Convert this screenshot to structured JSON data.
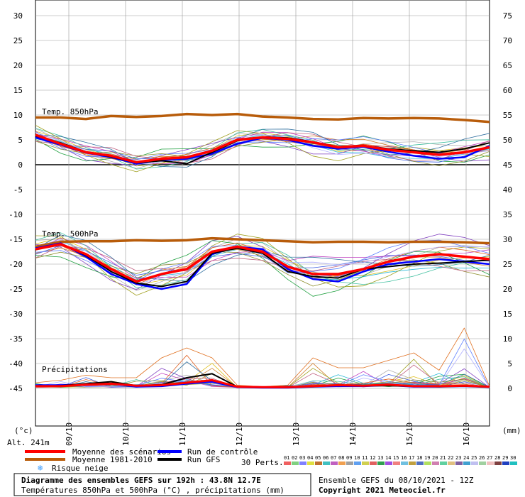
{
  "chart_data": {
    "type": "line",
    "x_dates": [
      "09/10",
      "10/10",
      "11/10",
      "12/10",
      "13/10",
      "14/10",
      "15/10",
      "16/10"
    ],
    "y_left_ticks": [
      30,
      25,
      20,
      15,
      10,
      5,
      0,
      -5,
      -10,
      -15,
      -20,
      -25,
      -30,
      -35,
      -40,
      -45
    ],
    "y_right_ticks": [
      75,
      70,
      65,
      60,
      55,
      50,
      45,
      40,
      35,
      30,
      25,
      20,
      15,
      10,
      5,
      0
    ],
    "unit_left": "(°c)",
    "unit_right": "(mm)",
    "altitude": "Alt. 241m",
    "panels": {
      "t850": "Temp. 850hPa",
      "t500": "Temp. 500hPa",
      "precip": "Précipitations"
    },
    "series": {
      "t850_mean": {
        "name": "Moyenne des scénarios",
        "color": "#ff0000",
        "values": [
          6,
          4.2,
          2.5,
          1.8,
          0.5,
          1.2,
          1.5,
          2.8,
          5,
          5.5,
          5.2,
          4.5,
          3.5,
          3.8,
          3,
          2.5,
          2,
          2.5,
          3.5
        ]
      },
      "t850_clim": {
        "name": "Moyenne 1981-2010",
        "color": "#b85c0a",
        "values": [
          9.5,
          9.5,
          9.2,
          9.8,
          9.6,
          9.8,
          10.2,
          10,
          10.2,
          9.7,
          9.5,
          9.2,
          9.1,
          9.4,
          9.3,
          9.4,
          9.3,
          9.0,
          8.6
        ]
      },
      "t850_control": {
        "name": "Run de contrôle",
        "color": "#0000ff",
        "values": [
          5.5,
          4,
          2.4,
          1.5,
          0.2,
          1,
          1.2,
          2.2,
          4.2,
          5.4,
          5,
          3.8,
          3.2,
          3.6,
          2.6,
          1.8,
          1.2,
          1.5,
          3.8
        ]
      },
      "t850_gfs": {
        "name": "Run GFS",
        "color": "#000000",
        "values": [
          5.8,
          4.4,
          2.6,
          1.6,
          0.4,
          0.8,
          0.2,
          2.5,
          4.8,
          5.6,
          5.4,
          4.6,
          3.6,
          3.9,
          3.2,
          2.8,
          2.5,
          3.2,
          4.4
        ]
      },
      "t500_mean": {
        "values": [
          -17,
          -16,
          -18,
          -21,
          -23.5,
          -22,
          -21,
          -17.5,
          -16.5,
          -17.5,
          -20.5,
          -22,
          -22,
          -21,
          -19.5,
          -18.5,
          -18,
          -18.5,
          -19
        ]
      },
      "t500_clim": {
        "values": [
          -16.5,
          -15.5,
          -15.4,
          -15.4,
          -15.2,
          -15.3,
          -15.2,
          -14.8,
          -15,
          -15.2,
          -15.4,
          -15.6,
          -15.5,
          -15.5,
          -15.6,
          -15.5,
          -15.5,
          -15.6,
          -15.8
        ]
      },
      "t500_control": {
        "values": [
          -16.8,
          -15.8,
          -18.5,
          -22,
          -24,
          -25,
          -24,
          -18,
          -16.5,
          -17,
          -21,
          -23,
          -23.5,
          -21.5,
          -20,
          -19.5,
          -19,
          -19.5,
          -20
        ]
      },
      "t500_gfs": {
        "values": [
          -17,
          -16,
          -18.2,
          -21.5,
          -23.8,
          -24.5,
          -23.5,
          -17.8,
          -16.8,
          -17.8,
          -21.5,
          -22.5,
          -22.8,
          -21,
          -20.5,
          -20,
          -19.8,
          -19.5,
          -19.2
        ]
      },
      "precip_mean": {
        "values": [
          0.3,
          0.3,
          0.6,
          0.8,
          0.4,
          0.5,
          1,
          1.5,
          0.2,
          0.1,
          0.1,
          0.3,
          0.5,
          0.4,
          0.6,
          0.3,
          0.3,
          0.4,
          0.2
        ]
      },
      "precip_control": {
        "values": [
          0.5,
          0.5,
          0.7,
          0.8,
          0.2,
          0.3,
          0.8,
          1.2,
          0.1,
          0,
          0,
          0.2,
          0.3,
          0.3,
          0.5,
          0.2,
          0.2,
          0.3,
          0.1
        ]
      },
      "precip_gfs": {
        "values": [
          0.3,
          0.4,
          0.8,
          1.2,
          0.4,
          0.6,
          2,
          2.8,
          0.2,
          0.1,
          0.2,
          0.2,
          0.5,
          0.4,
          0.4,
          0.3,
          0.2,
          0.3,
          0.1
        ]
      },
      "precip_max": {
        "values": [
          1,
          1.5,
          2.5,
          2,
          2,
          6,
          8,
          6,
          0.5,
          0.2,
          0.5,
          6,
          4,
          4,
          5.5,
          7,
          3.5,
          12,
          0.3
        ]
      }
    },
    "colors": {
      "grid": "#999999",
      "members": [
        "#2ab8d8",
        "#e0c020",
        "#b0b0b0",
        "#8040c0",
        "#20a040",
        "#d08030",
        "#4060e0",
        "#c040c0",
        "#40c0a0",
        "#a0a020",
        "#e06020",
        "#6080ff",
        "#909030",
        "#c06080",
        "#3070a0",
        "#b0b0ff"
      ]
    }
  },
  "legend": {
    "mean": "Moyenne des scénarios",
    "climate": "Moyenne 1981-2010",
    "snow": "Risque neige",
    "control": "Run de contrôle",
    "gfs": "Run GFS",
    "perts": "30 Perts.",
    "pert_numbers": [
      "01",
      "02",
      "03",
      "04",
      "05",
      "06",
      "07",
      "08",
      "09",
      "10",
      "11",
      "12",
      "13",
      "14",
      "15",
      "16",
      "17",
      "18",
      "19",
      "20",
      "21",
      "22",
      "23",
      "24",
      "25",
      "26",
      "27",
      "28",
      "29",
      "30"
    ],
    "pert_colors": [
      "#f06060",
      "#80d080",
      "#8080ff",
      "#e0e040",
      "#c07030",
      "#40c0c0",
      "#c060c0",
      "#f0a050",
      "#a0a0a0",
      "#60a0f0",
      "#d0d050",
      "#e06060",
      "#30a050",
      "#a050e0",
      "#f08080",
      "#70c0e0",
      "#c0a040",
      "#5070c0",
      "#b0e060",
      "#d080b0",
      "#60d0a0",
      "#e0c080",
      "#8060a0",
      "#40a0d0",
      "#c0c0f0",
      "#a0d0a0",
      "#f0c0c0",
      "#804040",
      "#2040c0",
      "#20c0c0"
    ]
  },
  "footer": {
    "title": "Diagramme des ensembles GEFS sur 192h : 43.8N 12.7E",
    "subtitle": "Températures 850hPa et 500hPa (°C) , précipitations (mm)",
    "run": "Ensemble GEFS du 08/10/2021 - 12Z",
    "copyright": "Copyright 2021 Meteociel.fr"
  }
}
